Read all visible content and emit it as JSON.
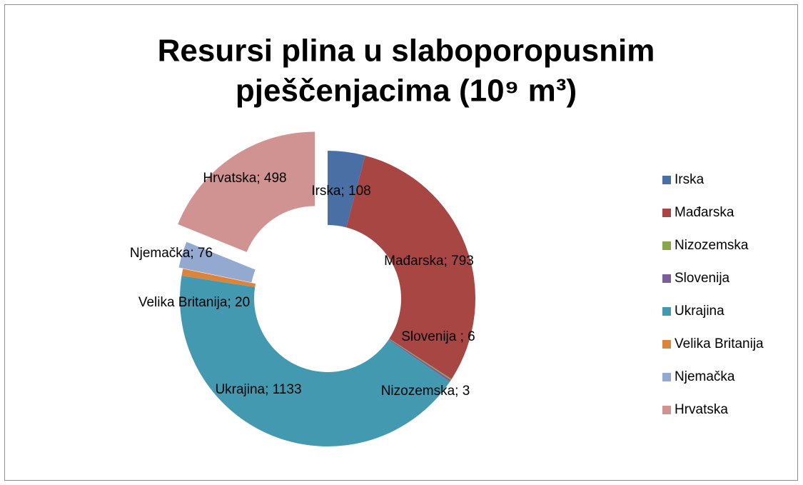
{
  "chart_data": {
    "type": "donut",
    "title": [
      "Resursi plina u slaboporopusnim",
      "pješčenjacima  (10⁹ m³)"
    ],
    "categories": [
      "Irska",
      "Mađarska",
      "Nizozemska",
      "Slovenija",
      "Ukrajina",
      "Velika Britanija",
      "Njemačka",
      "Hrvatska"
    ],
    "values": [
      108,
      793,
      3,
      6,
      1133,
      20,
      76,
      498
    ],
    "value_labels": [
      "Irska; 108",
      "Mađarska; 793",
      "Nizozemska; 3",
      "Slovenija ; 6",
      "Ukrajina; 1133",
      "Velika Britanija; 20",
      "Njemačka; 76",
      "Hrvatska; 498"
    ],
    "colors": [
      "#4a6fa5",
      "#a84644",
      "#8aa64b",
      "#7a5f98",
      "#4299b0",
      "#db843c",
      "#93a9cf",
      "#d09391"
    ],
    "legend": "right"
  }
}
